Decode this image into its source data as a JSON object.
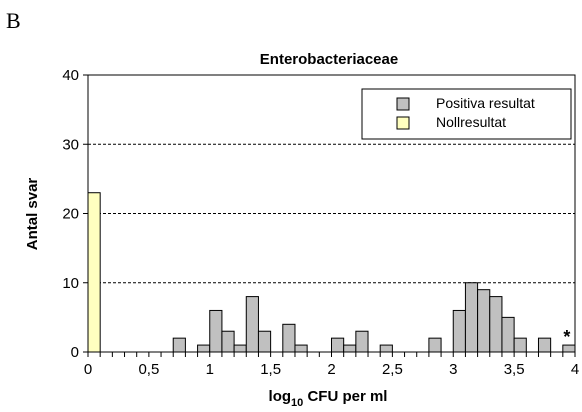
{
  "panel_label": "B",
  "chart_data": {
    "type": "bar",
    "title": "Enterobacteriaceae",
    "xlabel": {
      "main": "log",
      "sub": "10",
      "rest": " CFU per ml"
    },
    "ylabel": "Antal svar",
    "xlim": [
      0,
      4
    ],
    "ylim": [
      0,
      40
    ],
    "bin_width": 0.1,
    "x_ticks": [
      0,
      0.5,
      1,
      1.5,
      2,
      2.5,
      3,
      3.5,
      4
    ],
    "x_tick_labels": [
      "0",
      "0,5",
      "1",
      "1,5",
      "2",
      "2,5",
      "3",
      "3,5",
      "4"
    ],
    "y_ticks": [
      0,
      10,
      20,
      30,
      40
    ],
    "y_tick_labels": [
      "0",
      "10",
      "20",
      "30",
      "40"
    ],
    "grid": "dashed horizontal",
    "legend_position": "top-right",
    "series": [
      {
        "name": "Positiva resultat",
        "color": "#c0c0c0",
        "bin_starts": [
          0.7,
          0.9,
          1.0,
          1.1,
          1.2,
          1.3,
          1.4,
          1.6,
          1.7,
          2.0,
          2.1,
          2.2,
          2.4,
          2.8,
          3.0,
          3.1,
          3.2,
          3.3,
          3.4,
          3.5,
          3.7,
          3.9
        ],
        "values": [
          2,
          1,
          6,
          3,
          1,
          8,
          3,
          4,
          1,
          2,
          1,
          3,
          1,
          2,
          6,
          10,
          9,
          8,
          5,
          2,
          2,
          1
        ]
      },
      {
        "name": "Nollresultat",
        "color": "#ffffc0",
        "bin_starts": [
          0.0
        ],
        "values": [
          23
        ]
      }
    ],
    "annotations": [
      {
        "text": "*",
        "x": 3.95
      }
    ]
  }
}
